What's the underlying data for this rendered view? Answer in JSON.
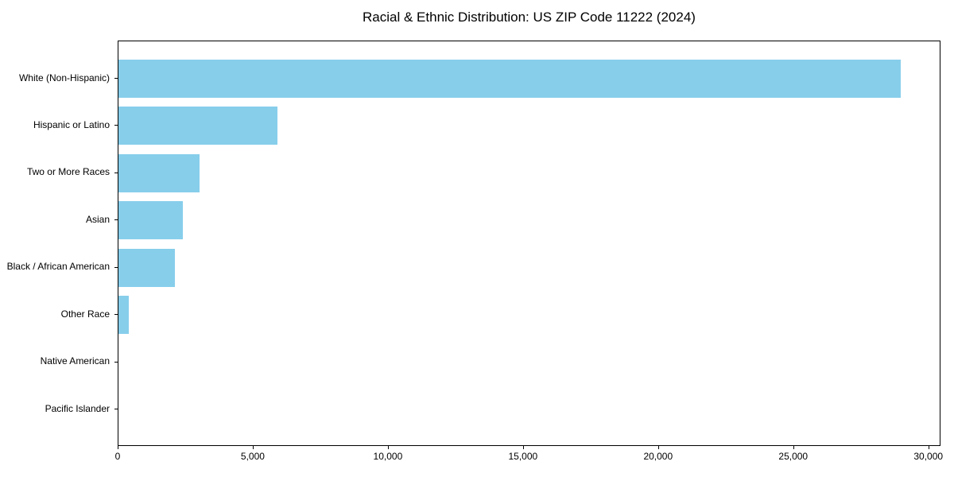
{
  "chart_data": {
    "type": "bar",
    "orientation": "horizontal",
    "title": "Racial & Ethnic Distribution: US ZIP Code 11222 (2024)",
    "categories": [
      "White (Non-Hispanic)",
      "Hispanic or Latino",
      "Two or More Races",
      "Asian",
      "Black / African American",
      "Other Race",
      "Native American",
      "Pacific Islander"
    ],
    "values": [
      29000,
      5900,
      3000,
      2400,
      2100,
      380,
      0,
      0
    ],
    "xlabel": "",
    "ylabel": "",
    "xlim": [
      0,
      30450
    ],
    "xticks": [
      0,
      5000,
      10000,
      15000,
      20000,
      25000,
      30000
    ],
    "xtick_labels": [
      "0",
      "5,000",
      "10,000",
      "15,000",
      "20,000",
      "25,000",
      "30,000"
    ],
    "grid": false,
    "legend": null,
    "bar_color": "#87CEEB",
    "axis_color": "#000000",
    "text_color": "#000000",
    "background_color": "#ffffff"
  }
}
